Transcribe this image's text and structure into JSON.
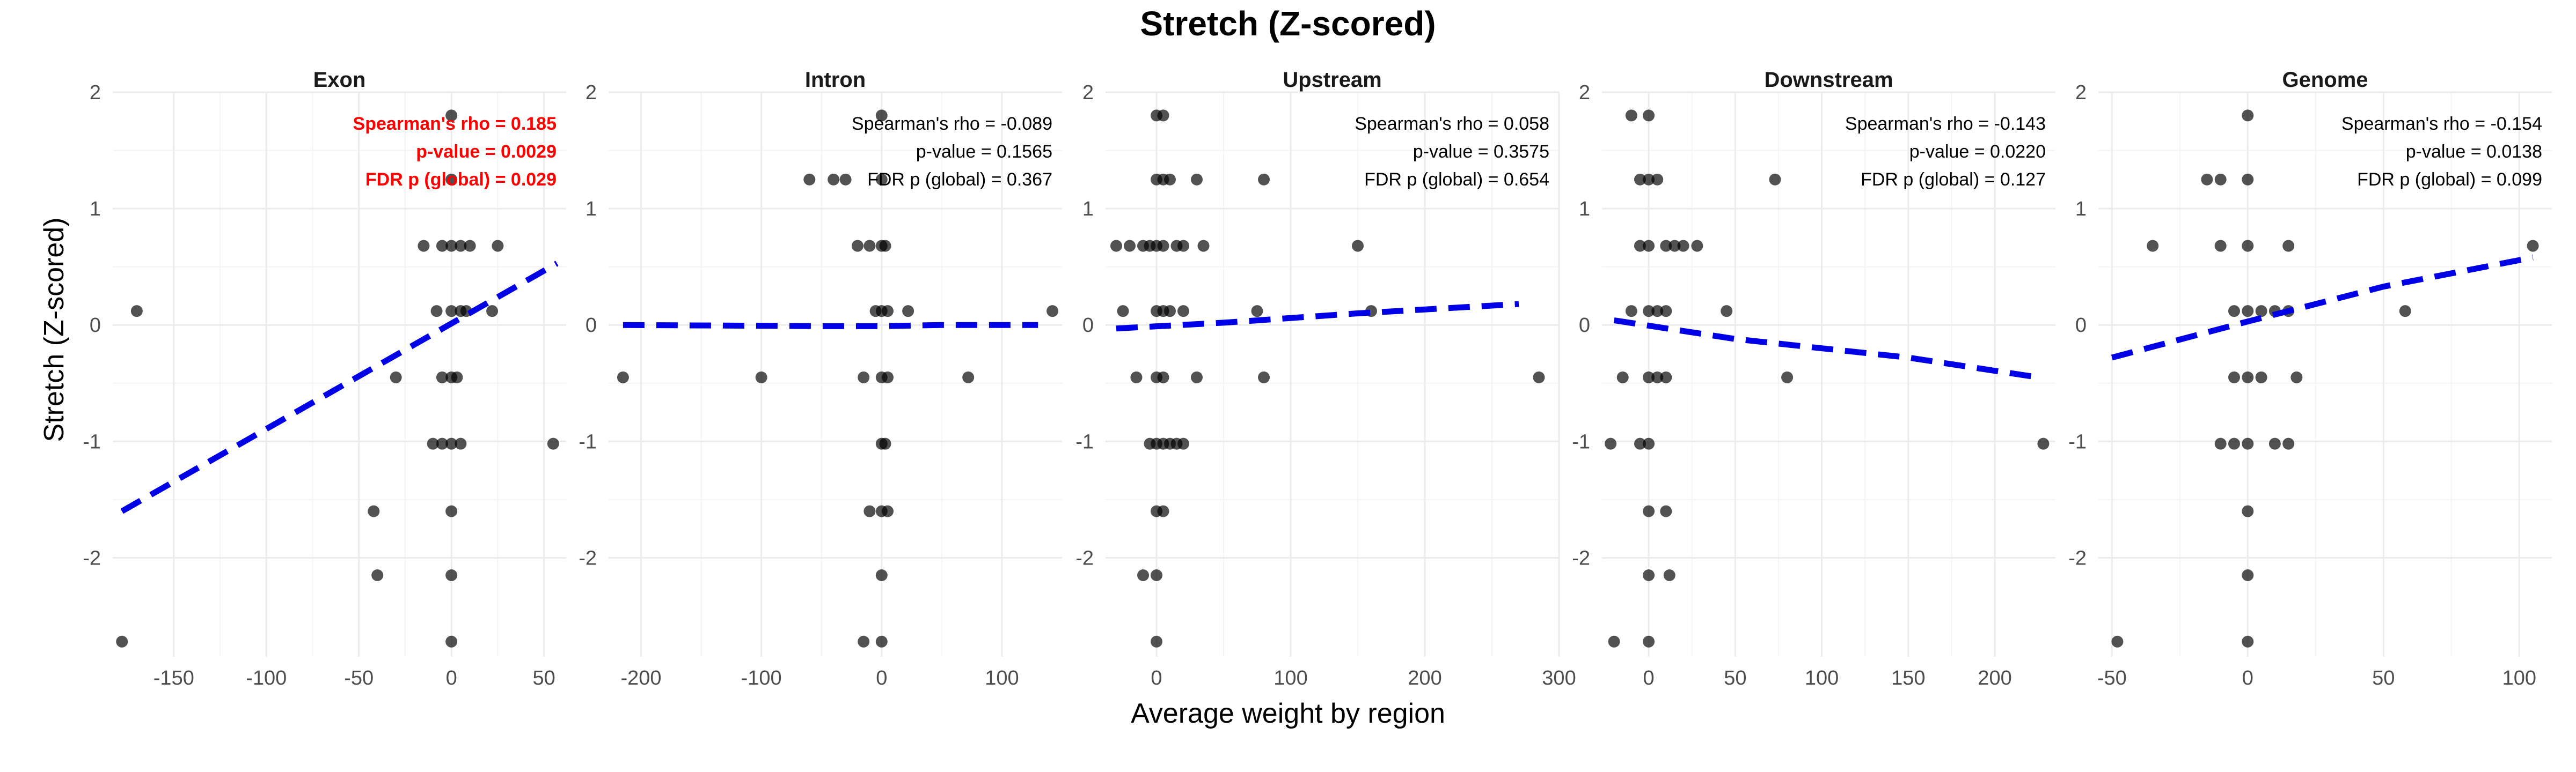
{
  "chart_data": {
    "type": "scatter",
    "title": "Stretch (Z-scored)",
    "xlabel": "Average weight by region",
    "ylabel": "Stretch (Z-scored)",
    "grid": true,
    "colors": {
      "point": "#000000",
      "fit_line": "#0000e6",
      "highlight": "#ff0000",
      "grid": "#ebebeb"
    },
    "y_ticks": [
      -2,
      -1,
      0,
      1,
      2
    ],
    "ylim": [
      -2.85,
      2.0
    ],
    "panels": [
      {
        "name": "Exon",
        "xlim": [
          -183,
          62
        ],
        "x_ticks": [
          -150,
          -100,
          -50,
          0,
          50
        ],
        "annotation_color": "#ff0000",
        "annotation": [
          "Spearman's rho = 0.185",
          "p-value = 0.0029",
          "FDR p (global) = 0.029"
        ],
        "fit": [
          [
            -178,
            -1.6
          ],
          [
            57,
            0.53
          ]
        ],
        "points": [
          [
            -170,
            0.12
          ],
          [
            -178,
            -2.72
          ],
          [
            -30,
            -0.45
          ],
          [
            -40,
            -2.15
          ],
          [
            -42,
            -1.6
          ],
          [
            -15,
            0.68
          ],
          [
            -5,
            0.68
          ],
          [
            -8,
            0.12
          ],
          [
            0,
            0.68
          ],
          [
            5,
            0.68
          ],
          [
            10,
            0.68
          ],
          [
            25,
            0.68
          ],
          [
            0,
            1.8
          ],
          [
            0,
            1.25
          ],
          [
            22,
            0.12
          ],
          [
            0,
            0.12
          ],
          [
            5,
            0.12
          ],
          [
            8,
            0.12
          ],
          [
            -5,
            -0.45
          ],
          [
            0,
            -0.45
          ],
          [
            3,
            -0.45
          ],
          [
            -10,
            -1.02
          ],
          [
            -5,
            -1.02
          ],
          [
            0,
            -1.02
          ],
          [
            5,
            -1.02
          ],
          [
            55,
            -1.02
          ],
          [
            0,
            -1.6
          ],
          [
            0,
            -2.15
          ],
          [
            0,
            -2.72
          ]
        ]
      },
      {
        "name": "Intron",
        "xlim": [
          -227,
          150
        ],
        "x_ticks": [
          -200,
          -100,
          0,
          100
        ],
        "annotation_color": "#000000",
        "annotation": [
          "Spearman's rho = -0.089",
          "p-value = 0.1565",
          "FDR p (global) = 0.367"
        ],
        "fit": [
          [
            -215,
            0.0
          ],
          [
            -50,
            -0.01
          ],
          [
            0,
            -0.01
          ],
          [
            50,
            0.0
          ],
          [
            130,
            0.0
          ]
        ],
        "points": [
          [
            -215,
            -0.45
          ],
          [
            -100,
            -0.45
          ],
          [
            -60,
            1.25
          ],
          [
            -40,
            1.25
          ],
          [
            -30,
            1.25
          ],
          [
            -20,
            0.68
          ],
          [
            -10,
            0.68
          ],
          [
            0,
            0.68
          ],
          [
            3,
            0.68
          ],
          [
            0,
            1.8
          ],
          [
            0,
            1.25
          ],
          [
            -5,
            0.12
          ],
          [
            0,
            0.12
          ],
          [
            5,
            0.12
          ],
          [
            22,
            0.12
          ],
          [
            142,
            0.12
          ],
          [
            -15,
            -0.45
          ],
          [
            0,
            -0.45
          ],
          [
            5,
            -0.45
          ],
          [
            72,
            -0.45
          ],
          [
            0,
            -1.02
          ],
          [
            3,
            -1.02
          ],
          [
            -10,
            -1.6
          ],
          [
            0,
            -1.6
          ],
          [
            5,
            -1.6
          ],
          [
            0,
            -2.15
          ],
          [
            -15,
            -2.72
          ],
          [
            0,
            -2.72
          ]
        ]
      },
      {
        "name": "Upstream",
        "xlim": [
          -38,
          300
        ],
        "x_ticks": [
          0,
          100,
          200,
          300
        ],
        "annotation_color": "#000000",
        "annotation": [
          "Spearman's rho = 0.058",
          "p-value = 0.3575",
          "FDR p (global) = 0.654"
        ],
        "fit": [
          [
            -30,
            -0.03
          ],
          [
            50,
            0.02
          ],
          [
            150,
            0.1
          ],
          [
            270,
            0.18
          ]
        ],
        "points": [
          [
            -30,
            0.68
          ],
          [
            -20,
            0.68
          ],
          [
            -10,
            0.68
          ],
          [
            -5,
            0.68
          ],
          [
            0,
            0.68
          ],
          [
            5,
            0.68
          ],
          [
            15,
            0.68
          ],
          [
            20,
            0.68
          ],
          [
            35,
            0.68
          ],
          [
            150,
            0.68
          ],
          [
            0,
            1.8
          ],
          [
            5,
            1.8
          ],
          [
            0,
            1.25
          ],
          [
            5,
            1.25
          ],
          [
            10,
            1.25
          ],
          [
            30,
            1.25
          ],
          [
            80,
            1.25
          ],
          [
            -25,
            0.12
          ],
          [
            0,
            0.12
          ],
          [
            5,
            0.12
          ],
          [
            10,
            0.12
          ],
          [
            20,
            0.12
          ],
          [
            75,
            0.12
          ],
          [
            160,
            0.12
          ],
          [
            -15,
            -0.45
          ],
          [
            0,
            -0.45
          ],
          [
            5,
            -0.45
          ],
          [
            30,
            -0.45
          ],
          [
            80,
            -0.45
          ],
          [
            285,
            -0.45
          ],
          [
            -5,
            -1.02
          ],
          [
            0,
            -1.02
          ],
          [
            5,
            -1.02
          ],
          [
            10,
            -1.02
          ],
          [
            15,
            -1.02
          ],
          [
            20,
            -1.02
          ],
          [
            0,
            -1.6
          ],
          [
            5,
            -1.6
          ],
          [
            -10,
            -2.15
          ],
          [
            0,
            -2.15
          ],
          [
            0,
            -2.72
          ]
        ]
      },
      {
        "name": "Downstream",
        "xlim": [
          -27,
          235
        ],
        "x_ticks": [
          0,
          50,
          100,
          150,
          200
        ],
        "annotation_color": "#000000",
        "annotation": [
          "Spearman's rho = -0.143",
          "p-value = 0.0220",
          "FDR p (global) = 0.127"
        ],
        "fit": [
          [
            -20,
            0.04
          ],
          [
            50,
            -0.12
          ],
          [
            150,
            -0.28
          ],
          [
            225,
            -0.45
          ]
        ],
        "points": [
          [
            -10,
            1.8
          ],
          [
            0,
            1.8
          ],
          [
            -5,
            1.25
          ],
          [
            0,
            1.25
          ],
          [
            5,
            1.25
          ],
          [
            73,
            1.25
          ],
          [
            -5,
            0.68
          ],
          [
            0,
            0.68
          ],
          [
            10,
            0.68
          ],
          [
            15,
            0.68
          ],
          [
            20,
            0.68
          ],
          [
            28,
            0.68
          ],
          [
            -10,
            0.12
          ],
          [
            0,
            0.12
          ],
          [
            5,
            0.12
          ],
          [
            10,
            0.12
          ],
          [
            45,
            0.12
          ],
          [
            -15,
            -0.45
          ],
          [
            0,
            -0.45
          ],
          [
            5,
            -0.45
          ],
          [
            10,
            -0.45
          ],
          [
            80,
            -0.45
          ],
          [
            -22,
            -1.02
          ],
          [
            -5,
            -1.02
          ],
          [
            0,
            -1.02
          ],
          [
            228,
            -1.02
          ],
          [
            0,
            -1.6
          ],
          [
            10,
            -1.6
          ],
          [
            0,
            -2.15
          ],
          [
            12,
            -2.15
          ],
          [
            -20,
            -2.72
          ],
          [
            0,
            -2.72
          ]
        ]
      },
      {
        "name": "Genome",
        "xlim": [
          -55,
          112
        ],
        "x_ticks": [
          -50,
          0,
          50,
          100
        ],
        "annotation_color": "#000000",
        "annotation": [
          "Spearman's rho = -0.154",
          "p-value = 0.0138",
          "FDR p (global) = 0.099"
        ],
        "fit": [
          [
            -50,
            -0.28
          ],
          [
            0,
            0.03
          ],
          [
            50,
            0.33
          ],
          [
            105,
            0.58
          ]
        ],
        "points": [
          [
            -35,
            0.68
          ],
          [
            -10,
            0.68
          ],
          [
            0,
            0.68
          ],
          [
            15,
            0.68
          ],
          [
            105,
            0.68
          ],
          [
            0,
            1.8
          ],
          [
            -15,
            1.25
          ],
          [
            -10,
            1.25
          ],
          [
            0,
            1.25
          ],
          [
            -5,
            0.12
          ],
          [
            0,
            0.12
          ],
          [
            5,
            0.12
          ],
          [
            10,
            0.12
          ],
          [
            15,
            0.12
          ],
          [
            58,
            0.12
          ],
          [
            -5,
            -0.45
          ],
          [
            0,
            -0.45
          ],
          [
            5,
            -0.45
          ],
          [
            18,
            -0.45
          ],
          [
            -10,
            -1.02
          ],
          [
            -5,
            -1.02
          ],
          [
            0,
            -1.02
          ],
          [
            10,
            -1.02
          ],
          [
            15,
            -1.02
          ],
          [
            0,
            -1.6
          ],
          [
            0,
            -2.15
          ],
          [
            -48,
            -2.72
          ],
          [
            0,
            -2.72
          ]
        ]
      }
    ]
  }
}
